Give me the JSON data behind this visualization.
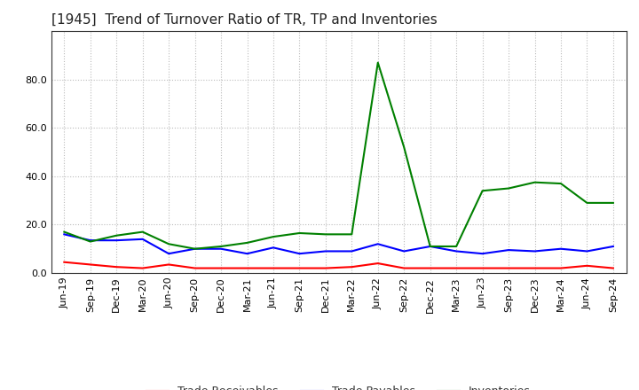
{
  "title": "[1945]  Trend of Turnover Ratio of TR, TP and Inventories",
  "labels": [
    "Jun-19",
    "Sep-19",
    "Dec-19",
    "Mar-20",
    "Jun-20",
    "Sep-20",
    "Dec-20",
    "Mar-21",
    "Jun-21",
    "Sep-21",
    "Dec-21",
    "Mar-22",
    "Jun-22",
    "Sep-22",
    "Dec-22",
    "Mar-23",
    "Jun-23",
    "Sep-23",
    "Dec-23",
    "Mar-24",
    "Jun-24",
    "Sep-24"
  ],
  "trade_receivables": [
    4.5,
    3.5,
    2.5,
    2.0,
    3.5,
    2.0,
    2.0,
    2.0,
    2.0,
    2.0,
    2.0,
    2.5,
    4.0,
    2.0,
    2.0,
    2.0,
    2.0,
    2.0,
    2.0,
    2.0,
    3.0,
    2.0
  ],
  "trade_payables": [
    16.0,
    13.5,
    13.5,
    14.0,
    8.0,
    10.0,
    10.0,
    8.0,
    10.5,
    8.0,
    9.0,
    9.0,
    12.0,
    9.0,
    11.0,
    9.0,
    8.0,
    9.5,
    9.0,
    10.0,
    9.0,
    11.0
  ],
  "inventories": [
    17.0,
    13.0,
    15.5,
    17.0,
    12.0,
    10.0,
    11.0,
    12.5,
    15.0,
    16.5,
    16.0,
    16.0,
    87.0,
    52.0,
    11.0,
    11.0,
    34.0,
    35.0,
    37.5,
    37.0,
    29.0,
    29.0
  ],
  "color_tr": "#ff0000",
  "color_tp": "#0000ff",
  "color_inv": "#008000",
  "ylim": [
    0.0,
    100.0
  ],
  "yticks": [
    0.0,
    20.0,
    40.0,
    60.0,
    80.0
  ],
  "background_color": "#ffffff",
  "grid_color": "#bbbbbb",
  "title_fontsize": 11,
  "tick_fontsize": 8,
  "legend_fontsize": 9,
  "linewidth": 1.5
}
